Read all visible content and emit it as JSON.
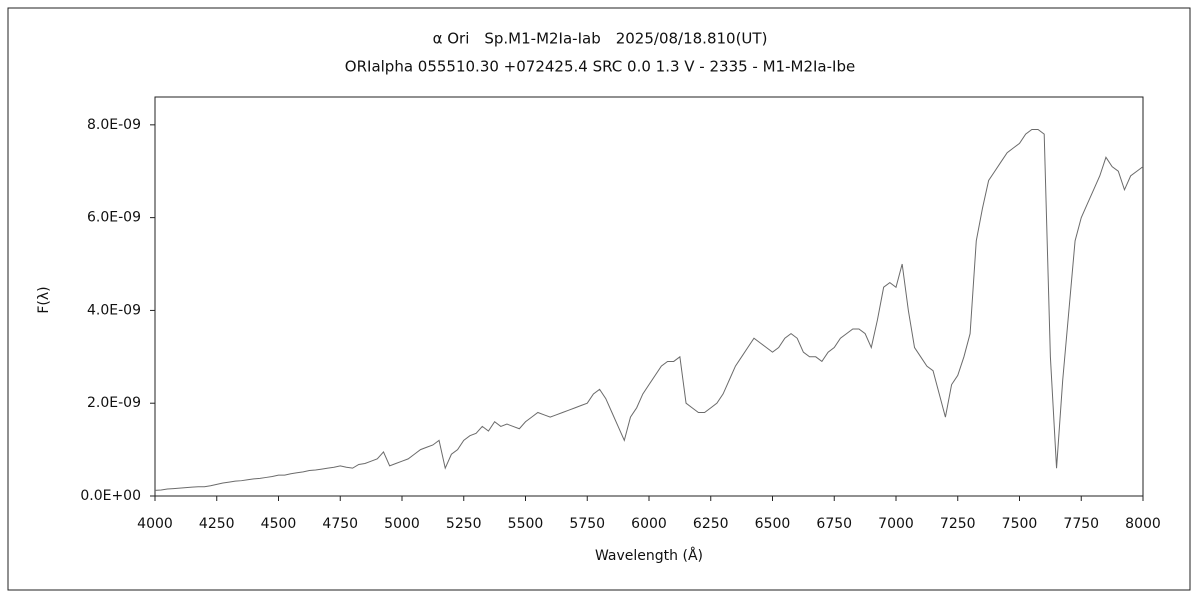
{
  "chart_data": {
    "type": "line",
    "title": "α Ori　Sp.M1-M2Ia-Iab　2025/08/18.810(UT)",
    "subtitle": "ORIalpha 055510.30 +072425.4 SRC 0.0 1.3 V - 2335 - M1-M2Ia-Ibe",
    "x_label": "Wavelength (Å)",
    "y_label": "F(λ)",
    "xlim": [
      4000,
      8000
    ],
    "xticks": [
      4000,
      4250,
      4500,
      4750,
      5000,
      5250,
      5500,
      5750,
      6000,
      6250,
      6500,
      6750,
      7000,
      7250,
      7500,
      7750,
      8000
    ],
    "ylim": [
      0,
      8.6e-09
    ],
    "yticks": [
      {
        "value": 0,
        "label": "0.0E+00"
      },
      {
        "value": 2e-09,
        "label": "2.0E-09"
      },
      {
        "value": 4e-09,
        "label": "4.0E-09"
      },
      {
        "value": 6e-09,
        "label": "6.0E-09"
      },
      {
        "value": 8e-09,
        "label": "8.0E-09"
      }
    ],
    "x": [
      4000,
      4025,
      4050,
      4075,
      4100,
      4125,
      4150,
      4175,
      4200,
      4225,
      4250,
      4275,
      4300,
      4325,
      4350,
      4375,
      4400,
      4425,
      4450,
      4475,
      4500,
      4525,
      4550,
      4575,
      4600,
      4625,
      4650,
      4675,
      4700,
      4725,
      4750,
      4775,
      4800,
      4825,
      4850,
      4875,
      4900,
      4925,
      4950,
      4975,
      5000,
      5025,
      5050,
      5075,
      5100,
      5125,
      5150,
      5175,
      5200,
      5225,
      5250,
      5275,
      5300,
      5325,
      5350,
      5375,
      5400,
      5425,
      5450,
      5475,
      5500,
      5525,
      5550,
      5575,
      5600,
      5625,
      5650,
      5675,
      5700,
      5725,
      5750,
      5775,
      5800,
      5825,
      5850,
      5875,
      5900,
      5925,
      5950,
      5975,
      6000,
      6025,
      6050,
      6075,
      6100,
      6125,
      6150,
      6175,
      6200,
      6225,
      6250,
      6275,
      6300,
      6325,
      6350,
      6375,
      6400,
      6425,
      6450,
      6475,
      6500,
      6525,
      6550,
      6575,
      6600,
      6625,
      6650,
      6675,
      6700,
      6725,
      6750,
      6775,
      6800,
      6825,
      6850,
      6875,
      6900,
      6925,
      6950,
      6975,
      7000,
      7025,
      7050,
      7075,
      7100,
      7125,
      7150,
      7175,
      7200,
      7225,
      7250,
      7275,
      7300,
      7325,
      7350,
      7375,
      7400,
      7425,
      7450,
      7475,
      7500,
      7525,
      7550,
      7575,
      7600,
      7625,
      7650,
      7675,
      7700,
      7725,
      7750,
      7775,
      7800,
      7825,
      7850,
      7875,
      7900,
      7925,
      7950,
      7975,
      8000
    ],
    "series": [
      {
        "color": "#6b6b6b",
        "values": [
          1.2e-10,
          1.3e-10,
          1.5e-10,
          1.6e-10,
          1.7e-10,
          1.8e-10,
          1.9e-10,
          2e-10,
          2e-10,
          2.2e-10,
          2.5e-10,
          2.8e-10,
          3e-10,
          3.2e-10,
          3.3e-10,
          3.5e-10,
          3.7e-10,
          3.8e-10,
          4e-10,
          4.2e-10,
          4.5e-10,
          4.5e-10,
          4.8e-10,
          5e-10,
          5.2e-10,
          5.5e-10,
          5.6e-10,
          5.8e-10,
          6e-10,
          6.2e-10,
          6.5e-10,
          6.2e-10,
          6e-10,
          6.8e-10,
          7e-10,
          7.5e-10,
          8e-10,
          9.5e-10,
          6.5e-10,
          7e-10,
          7.5e-10,
          8e-10,
          9e-10,
          1e-09,
          1.05e-09,
          1.1e-09,
          1.2e-09,
          6e-10,
          9e-10,
          1e-09,
          1.2e-09,
          1.3e-09,
          1.35e-09,
          1.5e-09,
          1.4e-09,
          1.6e-09,
          1.5e-09,
          1.55e-09,
          1.5e-09,
          1.45e-09,
          1.6e-09,
          1.7e-09,
          1.8e-09,
          1.75e-09,
          1.7e-09,
          1.75e-09,
          1.8e-09,
          1.85e-09,
          1.9e-09,
          1.95e-09,
          2e-09,
          2.2e-09,
          2.3e-09,
          2.1e-09,
          1.8e-09,
          1.5e-09,
          1.2e-09,
          1.7e-09,
          1.9e-09,
          2.2e-09,
          2.4e-09,
          2.6e-09,
          2.8e-09,
          2.9e-09,
          2.9e-09,
          3e-09,
          2e-09,
          1.9e-09,
          1.8e-09,
          1.8e-09,
          1.9e-09,
          2e-09,
          2.2e-09,
          2.5e-09,
          2.8e-09,
          3e-09,
          3.2e-09,
          3.4e-09,
          3.3e-09,
          3.2e-09,
          3.1e-09,
          3.2e-09,
          3.4e-09,
          3.5e-09,
          3.4e-09,
          3.1e-09,
          3e-09,
          3e-09,
          2.9e-09,
          3.1e-09,
          3.2e-09,
          3.4e-09,
          3.5e-09,
          3.6e-09,
          3.6e-09,
          3.5e-09,
          3.2e-09,
          3.8e-09,
          4.5e-09,
          4.6e-09,
          4.5e-09,
          5e-09,
          4e-09,
          3.2e-09,
          3e-09,
          2.8e-09,
          2.7e-09,
          2.2e-09,
          1.7e-09,
          2.4e-09,
          2.6e-09,
          3e-09,
          3.5e-09,
          5.5e-09,
          6.2e-09,
          6.8e-09,
          7e-09,
          7.2e-09,
          7.4e-09,
          7.5e-09,
          7.6e-09,
          7.8e-09,
          7.9e-09,
          7.9e-09,
          7.8e-09,
          3e-09,
          6e-10,
          2.5e-09,
          4e-09,
          5.5e-09,
          6e-09,
          6.3e-09,
          6.6e-09,
          6.9e-09,
          7.3e-09,
          7.1e-09,
          7e-09,
          6.6e-09,
          6.9e-09,
          7e-09,
          7.1e-09
        ]
      }
    ]
  }
}
